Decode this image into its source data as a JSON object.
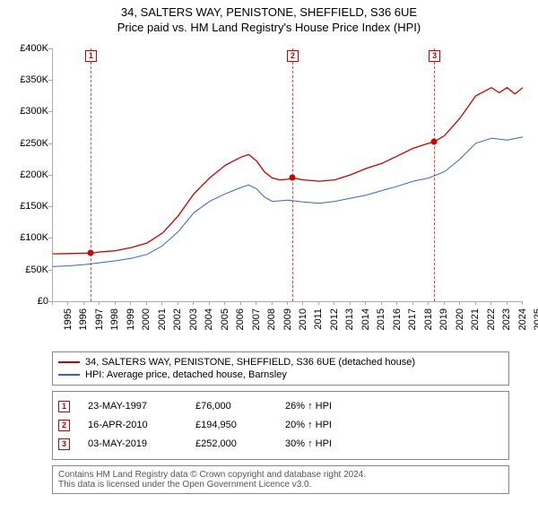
{
  "title": {
    "line1": "34, SALTERS WAY, PENISTONE, SHEFFIELD, S36 6UE",
    "line2": "Price paid vs. HM Land Registry's House Price Index (HPI)",
    "fontsize": 13
  },
  "chart": {
    "type": "line",
    "background_color": "#ffffff",
    "xlim": [
      1995,
      2025
    ],
    "ylim": [
      0,
      400000
    ],
    "ytick_step": 50000,
    "yticks": [
      {
        "v": 0,
        "label": "£0"
      },
      {
        "v": 50000,
        "label": "£50K"
      },
      {
        "v": 100000,
        "label": "£100K"
      },
      {
        "v": 150000,
        "label": "£150K"
      },
      {
        "v": 200000,
        "label": "£200K"
      },
      {
        "v": 250000,
        "label": "£250K"
      },
      {
        "v": 300000,
        "label": "£300K"
      },
      {
        "v": 350000,
        "label": "£350K"
      },
      {
        "v": 400000,
        "label": "£400K"
      }
    ],
    "xticks": [
      1995,
      1996,
      1997,
      1998,
      1999,
      2000,
      2001,
      2002,
      2003,
      2004,
      2005,
      2006,
      2007,
      2008,
      2009,
      2010,
      2011,
      2012,
      2013,
      2014,
      2015,
      2016,
      2017,
      2018,
      2019,
      2020,
      2021,
      2022,
      2023,
      2024,
      2025
    ],
    "series": [
      {
        "id": "property",
        "label": "34, SALTERS WAY, PENISTONE, SHEFFIELD, S36 6UE (detached house)",
        "color": "#cc0000",
        "line_width": 1.3,
        "data": [
          [
            1995,
            75000
          ],
          [
            1996,
            75500
          ],
          [
            1997,
            76000
          ],
          [
            1997.4,
            76000
          ],
          [
            1998,
            78000
          ],
          [
            1999,
            80000
          ],
          [
            2000,
            85000
          ],
          [
            2001,
            92000
          ],
          [
            2002,
            108000
          ],
          [
            2003,
            135000
          ],
          [
            2004,
            170000
          ],
          [
            2005,
            195000
          ],
          [
            2006,
            215000
          ],
          [
            2007,
            228000
          ],
          [
            2007.5,
            232000
          ],
          [
            2008,
            222000
          ],
          [
            2008.5,
            205000
          ],
          [
            2009,
            195000
          ],
          [
            2009.5,
            192000
          ],
          [
            2010,
            193000
          ],
          [
            2010.3,
            194950
          ],
          [
            2011,
            192000
          ],
          [
            2012,
            190000
          ],
          [
            2013,
            192000
          ],
          [
            2014,
            200000
          ],
          [
            2015,
            210000
          ],
          [
            2016,
            218000
          ],
          [
            2017,
            230000
          ],
          [
            2018,
            242000
          ],
          [
            2019,
            250000
          ],
          [
            2019.34,
            252000
          ],
          [
            2020,
            262000
          ],
          [
            2021,
            290000
          ],
          [
            2022,
            325000
          ],
          [
            2023,
            338000
          ],
          [
            2023.5,
            330000
          ],
          [
            2024,
            338000
          ],
          [
            2024.5,
            328000
          ],
          [
            2025,
            338000
          ]
        ]
      },
      {
        "id": "hpi",
        "label": "HPI: Average price, detached house, Barnsley",
        "color": "#3366cc",
        "line_width": 1.0,
        "data": [
          [
            1995,
            55000
          ],
          [
            1996,
            56000
          ],
          [
            1997,
            58000
          ],
          [
            1998,
            61000
          ],
          [
            1999,
            64000
          ],
          [
            2000,
            68000
          ],
          [
            2001,
            74000
          ],
          [
            2002,
            88000
          ],
          [
            2003,
            110000
          ],
          [
            2004,
            140000
          ],
          [
            2005,
            158000
          ],
          [
            2006,
            170000
          ],
          [
            2007,
            180000
          ],
          [
            2007.5,
            184000
          ],
          [
            2008,
            178000
          ],
          [
            2008.5,
            165000
          ],
          [
            2009,
            158000
          ],
          [
            2010,
            160000
          ],
          [
            2011,
            157000
          ],
          [
            2012,
            155000
          ],
          [
            2013,
            158000
          ],
          [
            2014,
            163000
          ],
          [
            2015,
            168000
          ],
          [
            2016,
            175000
          ],
          [
            2017,
            182000
          ],
          [
            2018,
            190000
          ],
          [
            2019,
            195000
          ],
          [
            2020,
            205000
          ],
          [
            2021,
            225000
          ],
          [
            2022,
            250000
          ],
          [
            2023,
            258000
          ],
          [
            2024,
            255000
          ],
          [
            2025,
            260000
          ]
        ]
      }
    ],
    "markers": [
      {
        "n": "1",
        "year": 1997.4,
        "price": 76000
      },
      {
        "n": "2",
        "year": 2010.29,
        "price": 194950
      },
      {
        "n": "3",
        "year": 2019.34,
        "price": 252000
      }
    ],
    "marker_color": "#cc0000",
    "axis_color": "#aaaaaa"
  },
  "legend": {
    "items": [
      {
        "color": "#cc0000",
        "text": "34, SALTERS WAY, PENISTONE, SHEFFIELD, S36 6UE (detached house)"
      },
      {
        "color": "#3366cc",
        "text": "HPI: Average price, detached house, Barnsley"
      }
    ]
  },
  "sales": [
    {
      "n": "1",
      "date": "23-MAY-1997",
      "price": "£76,000",
      "hpi": "26% ↑ HPI"
    },
    {
      "n": "2",
      "date": "16-APR-2010",
      "price": "£194,950",
      "hpi": "20% ↑ HPI"
    },
    {
      "n": "3",
      "date": "03-MAY-2019",
      "price": "£252,000",
      "hpi": "30% ↑ HPI"
    }
  ],
  "footnote": {
    "line1": "Contains HM Land Registry data © Crown copyright and database right 2024.",
    "line2": "This data is licensed under the Open Government Licence v3.0."
  }
}
